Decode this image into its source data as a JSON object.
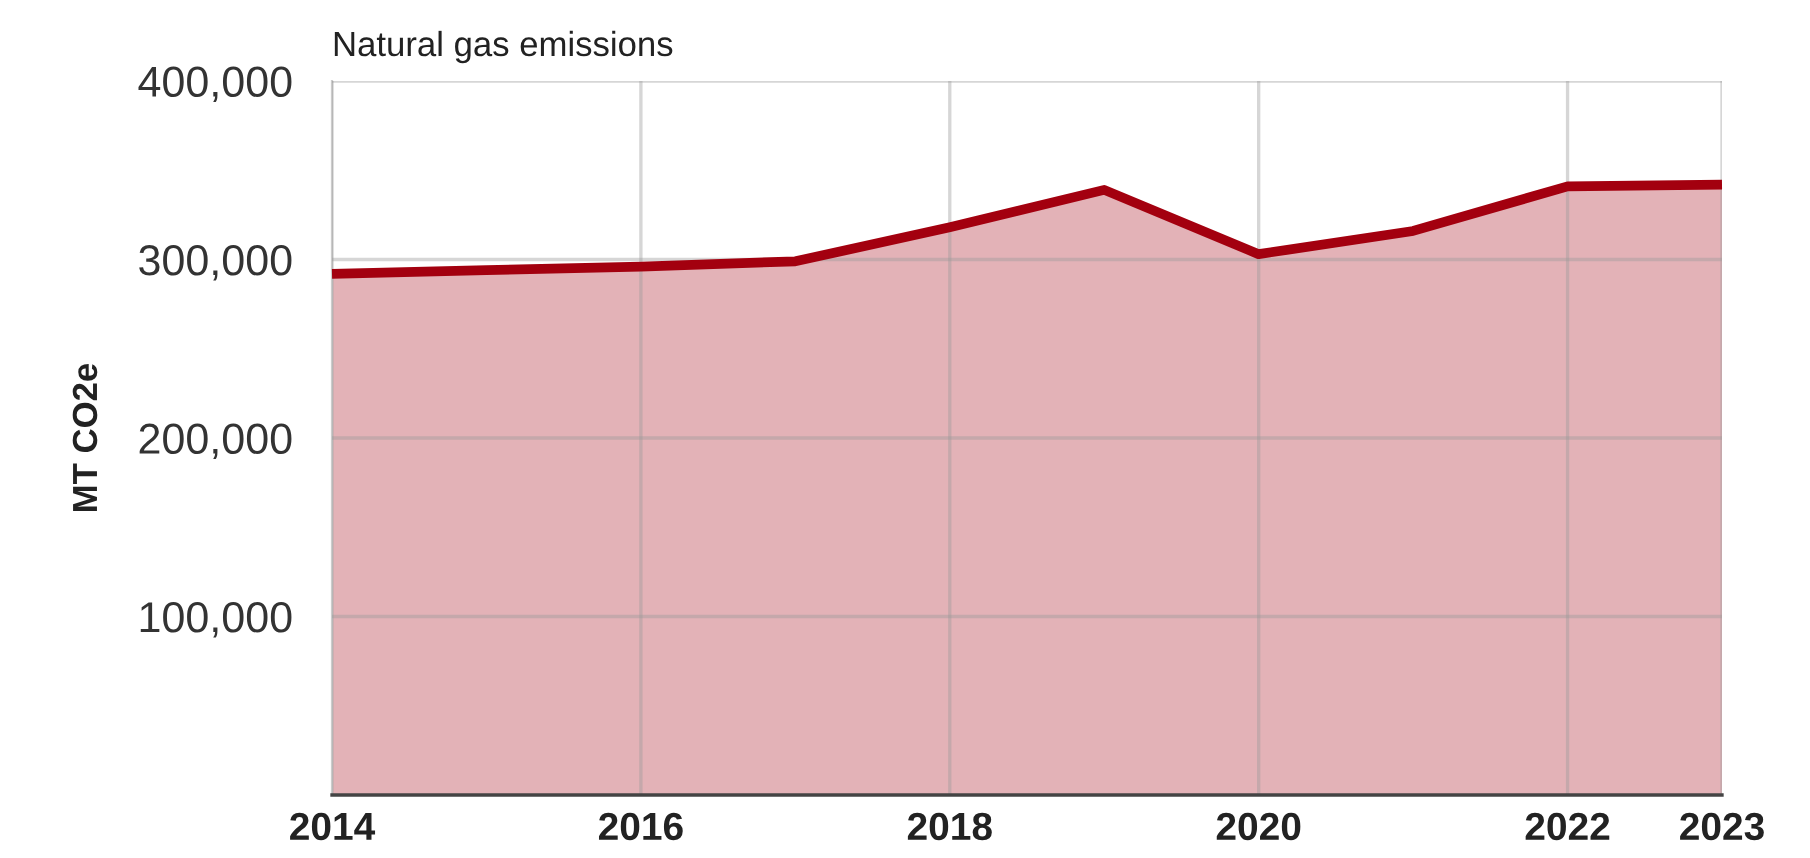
{
  "chart_data": {
    "type": "area",
    "title": "Natural gas emissions",
    "ylabel": "MT CO2e",
    "x": [
      2014,
      2015,
      2016,
      2017,
      2018,
      2019,
      2020,
      2021,
      2022,
      2023
    ],
    "series": [
      {
        "color": "#a3000f",
        "values": [
          292000,
          294000,
          296000,
          299000,
          318000,
          339000,
          303000,
          316000,
          341000,
          342000
        ]
      }
    ],
    "xlim": [
      2014,
      2023
    ],
    "xticks": [
      2014,
      2016,
      2018,
      2020,
      2022,
      2023
    ],
    "ylim": [
      0,
      400000
    ],
    "yticks": [
      {
        "value": 100000,
        "label": "100,000"
      },
      {
        "value": 200000,
        "label": "200,000"
      },
      {
        "value": 300000,
        "label": "300,000"
      },
      {
        "value": 400000,
        "label": "400,000"
      }
    ],
    "grid": true
  }
}
